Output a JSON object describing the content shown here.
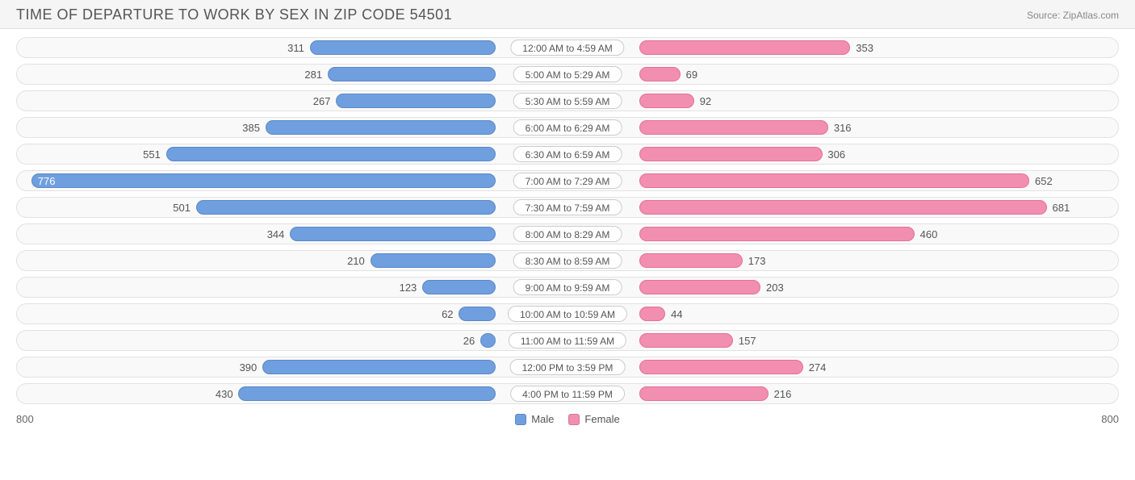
{
  "header": {
    "title": "TIME OF DEPARTURE TO WORK BY SEX IN ZIP CODE 54501",
    "source": "Source: ZipAtlas.com"
  },
  "chart": {
    "type": "diverging-bar",
    "axis_max": 800,
    "axis_left_label": "800",
    "axis_right_label": "800",
    "background_color": "#ffffff",
    "track_bg": "#f9f9f9",
    "track_border": "#e2e2e2",
    "pill_bg": "#ffffff",
    "pill_border": "#cccccc",
    "colors": {
      "male": "#6f9fde",
      "male_border": "#5a88c7",
      "female": "#f28fb1",
      "female_border": "#e56f98"
    },
    "legend": [
      {
        "label": "Male",
        "color": "#6f9fde"
      },
      {
        "label": "Female",
        "color": "#f28fb1"
      }
    ],
    "rows": [
      {
        "category": "12:00 AM to 4:59 AM",
        "male": 311,
        "female": 353
      },
      {
        "category": "5:00 AM to 5:29 AM",
        "male": 281,
        "female": 69
      },
      {
        "category": "5:30 AM to 5:59 AM",
        "male": 267,
        "female": 92
      },
      {
        "category": "6:00 AM to 6:29 AM",
        "male": 385,
        "female": 316
      },
      {
        "category": "6:30 AM to 6:59 AM",
        "male": 551,
        "female": 306
      },
      {
        "category": "7:00 AM to 7:29 AM",
        "male": 776,
        "female": 652
      },
      {
        "category": "7:30 AM to 7:59 AM",
        "male": 501,
        "female": 681
      },
      {
        "category": "8:00 AM to 8:29 AM",
        "male": 344,
        "female": 460
      },
      {
        "category": "8:30 AM to 8:59 AM",
        "male": 210,
        "female": 173
      },
      {
        "category": "9:00 AM to 9:59 AM",
        "male": 123,
        "female": 203
      },
      {
        "category": "10:00 AM to 10:59 AM",
        "male": 62,
        "female": 44
      },
      {
        "category": "11:00 AM to 11:59 AM",
        "male": 26,
        "female": 157
      },
      {
        "category": "12:00 PM to 3:59 PM",
        "male": 390,
        "female": 274
      },
      {
        "category": "4:00 PM to 11:59 PM",
        "male": 430,
        "female": 216
      }
    ],
    "label_fontsize": 13,
    "title_fontsize": 18,
    "inside_label_threshold_pct": 90
  }
}
